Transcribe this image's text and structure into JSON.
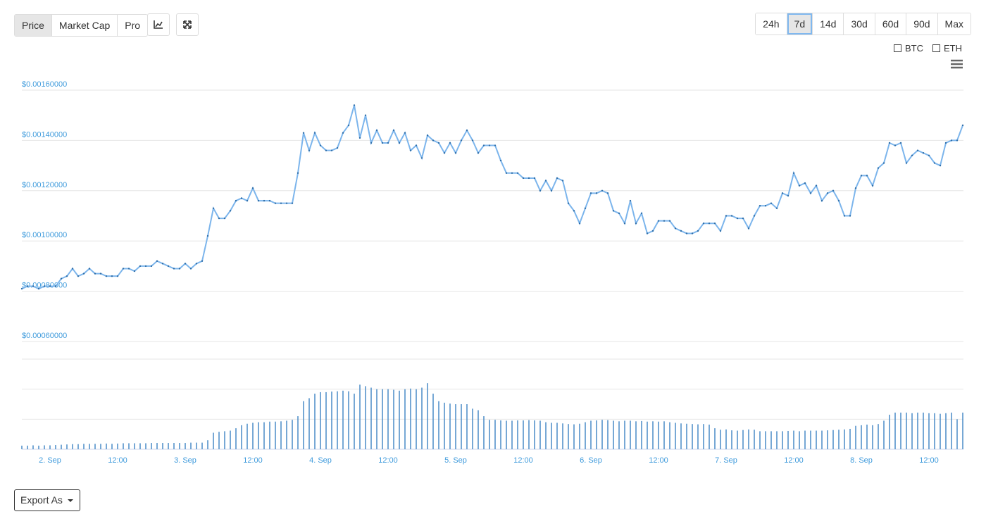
{
  "toolbar": {
    "views": [
      "Price",
      "Market Cap",
      "Pro"
    ],
    "active_view": "Price",
    "ranges": [
      "24h",
      "7d",
      "14d",
      "30d",
      "60d",
      "90d",
      "Max"
    ],
    "selected_range": "7d",
    "compare": [
      "BTC",
      "ETH"
    ],
    "export": "Export As"
  },
  "chart_data": {
    "type": "line",
    "categories": [
      null,
      null,
      null,
      null,
      null,
      "2. Sep",
      null,
      null,
      null,
      null,
      null,
      null,
      null,
      null,
      null,
      null,
      null,
      "12:00",
      null,
      null,
      null,
      null,
      null,
      null,
      null,
      null,
      null,
      null,
      null,
      "3. Sep",
      null,
      null,
      null,
      null,
      null,
      null,
      null,
      null,
      null,
      null,
      null,
      "12:00",
      null,
      null,
      null,
      null,
      null,
      null,
      null,
      null,
      null,
      null,
      null,
      "4. Sep",
      null,
      null,
      null,
      null,
      null,
      null,
      null,
      null,
      null,
      null,
      null,
      "12:00",
      null,
      null,
      null,
      null,
      null,
      null,
      null,
      null,
      null,
      null,
      null,
      "5. Sep",
      null,
      null,
      null,
      null,
      null,
      null,
      null,
      null,
      null,
      null,
      null,
      "12:00",
      null,
      null,
      null,
      null,
      null,
      null,
      null,
      null,
      null,
      null,
      null,
      "6. Sep",
      null,
      null,
      null,
      null,
      null,
      null,
      null,
      null,
      null,
      null,
      null,
      "12:00",
      null,
      null,
      null,
      null,
      null,
      null,
      null,
      null,
      null,
      null,
      null,
      "7. Sep",
      null,
      null,
      null,
      null,
      null,
      null,
      null,
      null,
      null,
      null,
      null,
      "12:00",
      null,
      null,
      null,
      null,
      null,
      null,
      null,
      null,
      null,
      null,
      null,
      "8. Sep",
      null,
      null,
      null,
      null,
      null,
      null,
      null,
      null,
      null,
      null,
      null,
      "12:00",
      null,
      null,
      null,
      null,
      null,
      null
    ],
    "series": [
      {
        "color": "#7cb5ec",
        "values": [
          0.00081,
          0.00082,
          0.00082,
          0.00081,
          0.00082,
          0.00082,
          0.00082,
          0.00085,
          0.00086,
          0.00089,
          0.00086,
          0.00087,
          0.00089,
          0.00087,
          0.00087,
          0.00086,
          0.00086,
          0.00086,
          0.00089,
          0.00089,
          0.00088,
          0.0009,
          0.0009,
          0.0009,
          0.00092,
          0.00091,
          0.0009,
          0.00089,
          0.00089,
          0.00091,
          0.00089,
          0.00091,
          0.00092,
          0.00102,
          0.00113,
          0.00109,
          0.00109,
          0.00112,
          0.00116,
          0.00117,
          0.00116,
          0.00121,
          0.00116,
          0.00116,
          0.00116,
          0.00115,
          0.00115,
          0.00115,
          0.00115,
          0.00127,
          0.00143,
          0.00136,
          0.00143,
          0.00138,
          0.00136,
          0.00136,
          0.00137,
          0.00143,
          0.00146,
          0.00154,
          0.00141,
          0.0015,
          0.00139,
          0.00144,
          0.00139,
          0.00139,
          0.00144,
          0.00139,
          0.00143,
          0.00136,
          0.00138,
          0.00133,
          0.00142,
          0.0014,
          0.00139,
          0.00135,
          0.00139,
          0.00135,
          0.0014,
          0.00144,
          0.0014,
          0.00135,
          0.00138,
          0.00138,
          0.00138,
          0.00132,
          0.00127,
          0.00127,
          0.00127,
          0.00125,
          0.00125,
          0.00125,
          0.0012,
          0.00124,
          0.0012,
          0.00125,
          0.00124,
          0.00115,
          0.00112,
          0.00107,
          0.00113,
          0.00119,
          0.00119,
          0.0012,
          0.00119,
          0.00112,
          0.00111,
          0.00107,
          0.00116,
          0.00107,
          0.00111,
          0.00103,
          0.00104,
          0.00108,
          0.00108,
          0.00108,
          0.00105,
          0.00104,
          0.00103,
          0.00103,
          0.00104,
          0.00107,
          0.00107,
          0.00107,
          0.00104,
          0.0011,
          0.0011,
          0.00109,
          0.00109,
          0.00105,
          0.0011,
          0.00114,
          0.00114,
          0.00115,
          0.00113,
          0.00119,
          0.00118,
          0.00127,
          0.00122,
          0.00123,
          0.00119,
          0.00122,
          0.00116,
          0.00119,
          0.0012,
          0.00116,
          0.0011,
          0.0011,
          0.00121,
          0.00126,
          0.00126,
          0.00122,
          0.00129,
          0.00131,
          0.00139,
          0.00138,
          0.00139,
          0.00131,
          0.00134,
          0.00136,
          0.00135,
          0.00134,
          0.00131,
          0.0013,
          0.00139,
          0.0014,
          0.0014,
          0.00146
        ]
      },
      {
        "type": "bar",
        "axis": "y2",
        "color": "#4a8cc7",
        "values": [
          0.12,
          0.12,
          0.13,
          0.12,
          0.13,
          0.13,
          0.14,
          0.15,
          0.16,
          0.17,
          0.17,
          0.18,
          0.18,
          0.18,
          0.18,
          0.19,
          0.18,
          0.19,
          0.2,
          0.2,
          0.2,
          0.2,
          0.2,
          0.21,
          0.21,
          0.21,
          0.21,
          0.21,
          0.21,
          0.21,
          0.22,
          0.22,
          0.22,
          0.3,
          0.55,
          0.58,
          0.6,
          0.62,
          0.7,
          0.8,
          0.85,
          0.88,
          0.9,
          0.9,
          0.92,
          0.92,
          0.93,
          0.95,
          0.98,
          1.1,
          1.6,
          1.7,
          1.85,
          1.9,
          1.9,
          1.92,
          1.93,
          1.95,
          1.93,
          1.85,
          2.15,
          2.1,
          2.05,
          2.0,
          2.0,
          2.0,
          1.98,
          1.95,
          2.0,
          2.02,
          2.0,
          2.05,
          2.2,
          1.85,
          1.6,
          1.55,
          1.52,
          1.5,
          1.5,
          1.5,
          1.35,
          1.3,
          1.1,
          0.98,
          0.98,
          0.96,
          0.95,
          0.95,
          0.96,
          0.96,
          0.97,
          0.96,
          0.95,
          0.9,
          0.88,
          0.88,
          0.86,
          0.84,
          0.83,
          0.85,
          0.9,
          0.95,
          0.96,
          0.98,
          0.97,
          0.95,
          0.93,
          0.95,
          0.95,
          0.93,
          0.94,
          0.92,
          0.93,
          0.92,
          0.93,
          0.9,
          0.88,
          0.86,
          0.85,
          0.84,
          0.83,
          0.84,
          0.82,
          0.7,
          0.65,
          0.66,
          0.63,
          0.62,
          0.64,
          0.66,
          0.65,
          0.6,
          0.6,
          0.6,
          0.6,
          0.6,
          0.61,
          0.62,
          0.6,
          0.62,
          0.62,
          0.62,
          0.62,
          0.63,
          0.64,
          0.65,
          0.66,
          0.68,
          0.78,
          0.8,
          0.82,
          0.8,
          0.84,
          0.95,
          1.15,
          1.22,
          1.22,
          1.22,
          1.2,
          1.22,
          1.22,
          1.2,
          1.2,
          1.18,
          1.2,
          1.22,
          1.0,
          1.22
        ]
      }
    ],
    "ylim": [
      0.0006,
      0.0016
    ],
    "yticks": [
      {
        "value": 0.0006,
        "label": "$0.00060000"
      },
      {
        "value": 0.0008,
        "label": "$0.00080000"
      },
      {
        "value": 0.001,
        "label": "$0.00100000"
      },
      {
        "value": 0.0012,
        "label": "$0.00120000"
      },
      {
        "value": 0.0014,
        "label": "$0.00140000"
      },
      {
        "value": 0.0016,
        "label": "$0.00160000"
      }
    ],
    "y2lim": [
      0,
      3
    ],
    "y2ticks": [
      0,
      1,
      2,
      3
    ],
    "grid": true
  }
}
